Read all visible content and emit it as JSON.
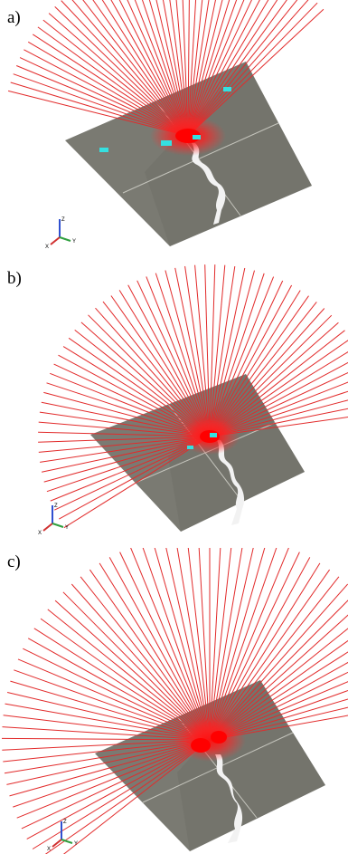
{
  "figure": {
    "panels": [
      {
        "label": "a)",
        "axes": {
          "z": "Z",
          "x": "X",
          "y": "Y"
        }
      },
      {
        "label": "b)",
        "axes": {
          "z": "Z",
          "x": "X",
          "y": "Y"
        }
      },
      {
        "label": "c)",
        "axes": {
          "z": "Z",
          "x": "X",
          "y": "Y"
        }
      }
    ]
  },
  "colors": {
    "ray": "#e22b2b",
    "terrain": "#7a7a72",
    "terrain_dark": "#5e5e58",
    "grid": "#d8d8d0",
    "sensor_marker": "#35e0e0",
    "river": "#f2f2f2",
    "axis_z": "#3050d0",
    "axis_x": "#d03030",
    "axis_y": "#30a040"
  }
}
